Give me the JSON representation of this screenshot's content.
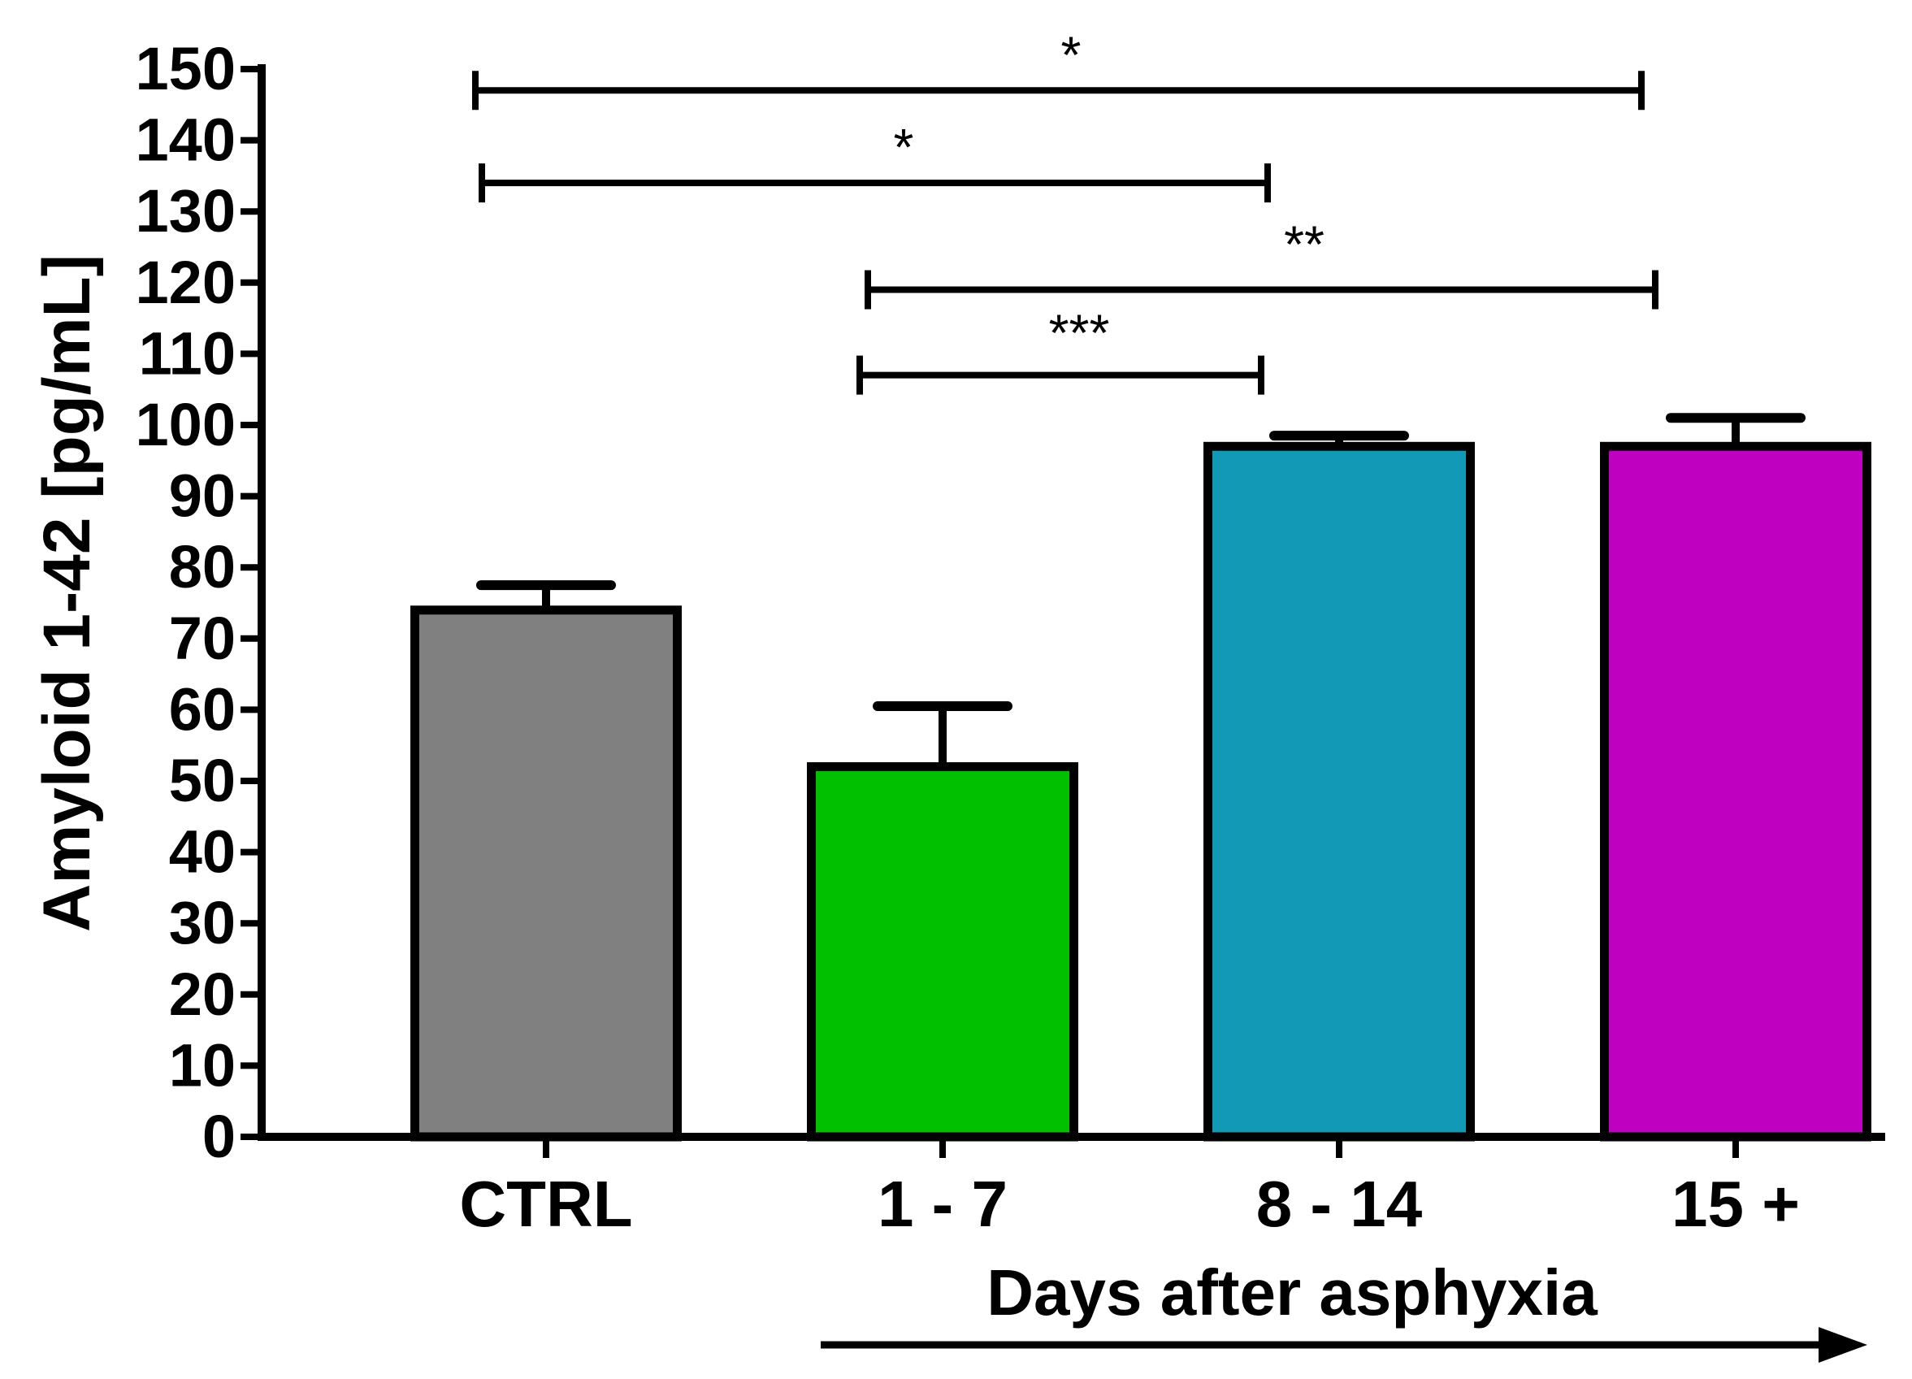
{
  "chart_data": {
    "type": "bar",
    "title": "",
    "ylabel": "Amyloid 1-42 [pg/mL]",
    "xlabel": "Days after asphyxia",
    "ylim": [
      0,
      150
    ],
    "yticks": [
      0,
      10,
      20,
      30,
      40,
      50,
      60,
      70,
      80,
      90,
      100,
      110,
      120,
      130,
      140,
      150
    ],
    "categories": [
      "CTRL",
      "1 - 7",
      "8 - 14",
      "15 +"
    ],
    "values": [
      74,
      52,
      97,
      97
    ],
    "errors": [
      3.5,
      8.5,
      1.5,
      4
    ],
    "colors": [
      "#808080",
      "#00c000",
      "#1199b5",
      "#c000c0"
    ],
    "significance": [
      {
        "from": 0,
        "to": 3,
        "label": "*",
        "y": 147
      },
      {
        "from": 0,
        "to": 2,
        "label": "*",
        "y": 134
      },
      {
        "from": 1,
        "to": 3,
        "label": "**",
        "y": 119
      },
      {
        "from": 1,
        "to": 2,
        "label": "***",
        "y": 107
      }
    ],
    "grid": false
  }
}
